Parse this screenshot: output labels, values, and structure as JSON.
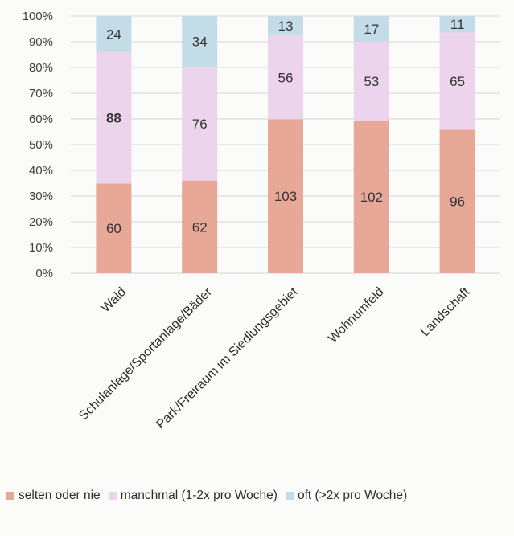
{
  "chart_data": {
    "type": "bar",
    "stacked": "percent",
    "title": "",
    "xlabel": "",
    "ylabel": "",
    "ylim": [
      0,
      100
    ],
    "yticks": [
      "0%",
      "10%",
      "20%",
      "30%",
      "40%",
      "50%",
      "60%",
      "70%",
      "80%",
      "90%",
      "100%"
    ],
    "grid": true,
    "legend_position": "bottom",
    "categories": [
      "Wald",
      "Schulanlage/Sportanlage/Bäder",
      "Park/Freiraum im Siedlungsgebiet",
      "Wohnumfeld",
      "Landschaft"
    ],
    "series": [
      {
        "name": "selten oder nie",
        "color": "#e8a898",
        "values": [
          60,
          62,
          103,
          102,
          96
        ]
      },
      {
        "name": "manchmal (1-2x pro Woche)",
        "color": "#ecd4ec",
        "values": [
          88,
          76,
          56,
          53,
          65
        ]
      },
      {
        "name": "oft (>2x pro Woche)",
        "color": "#c4dbe8",
        "values": [
          24,
          34,
          13,
          17,
          11
        ]
      }
    ]
  }
}
